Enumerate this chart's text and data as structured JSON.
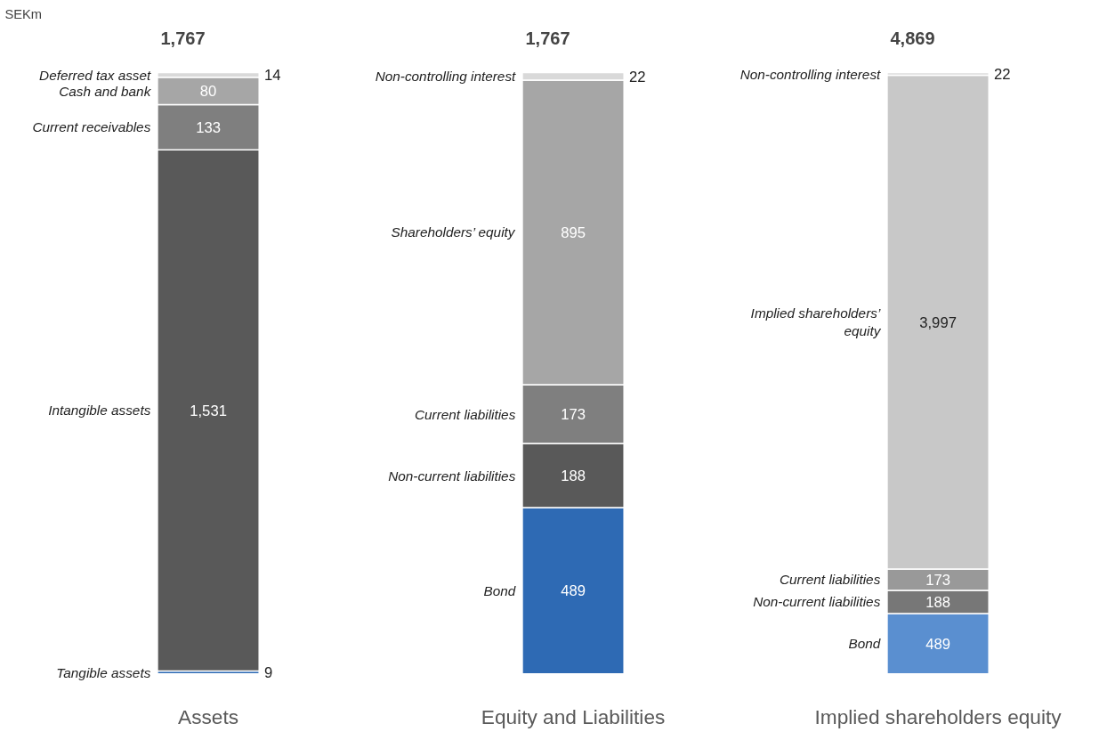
{
  "chart_data": [
    {
      "type": "bar",
      "stacked": true,
      "categories": [
        "Assets"
      ],
      "tick_labels": "x",
      "grid": false,
      "totals": [
        "1,767"
      ],
      "annotations": [
        "SEKm"
      ],
      "series": [
        {
          "name": "Tangible assets",
          "color": "#2e6ab4",
          "values": [
            9
          ],
          "value_labels": [
            "9"
          ]
        },
        {
          "name": "Intangible assets",
          "color": "#595959",
          "values": [
            1531
          ],
          "value_labels": [
            "1,531"
          ]
        },
        {
          "name": "Current receivables",
          "color": "#7f7f7f",
          "values": [
            133
          ],
          "value_labels": [
            "133"
          ]
        },
        {
          "name": "Cash and bank",
          "color": "#a6a6a6",
          "values": [
            80
          ],
          "value_labels": [
            "80"
          ]
        },
        {
          "name": "Deferred tax asset",
          "color": "#d9d9d9",
          "values": [
            14
          ],
          "value_labels": [
            "14"
          ]
        }
      ]
    },
    {
      "type": "bar",
      "stacked": true,
      "categories": [
        "Equity and Liabilities"
      ],
      "tick_labels": "x",
      "grid": false,
      "totals": [
        "1,767"
      ],
      "series": [
        {
          "name": "Bond",
          "color": "#2e6ab4",
          "values": [
            489
          ],
          "value_labels": [
            "489"
          ]
        },
        {
          "name": "Non-current liabilities",
          "color": "#595959",
          "values": [
            188
          ],
          "value_labels": [
            "188"
          ]
        },
        {
          "name": "Current liabilities",
          "color": "#7f7f7f",
          "values": [
            173
          ],
          "value_labels": [
            "173"
          ]
        },
        {
          "name": "Shareholders’ equity",
          "color": "#a6a6a6",
          "values": [
            895
          ],
          "value_labels": [
            "895"
          ]
        },
        {
          "name": "Non-controlling interest",
          "color": "#d9d9d9",
          "values": [
            22
          ],
          "value_labels": [
            "22"
          ]
        }
      ]
    },
    {
      "type": "bar",
      "stacked": true,
      "categories": [
        "Implied shareholders equity"
      ],
      "tick_labels": "x",
      "grid": false,
      "totals": [
        "4,869"
      ],
      "series": [
        {
          "name": "Bond",
          "color": "#5a8fd0",
          "values": [
            489
          ],
          "value_labels": [
            "489"
          ]
        },
        {
          "name": "Non-current liabilities",
          "color": "#777777",
          "values": [
            188
          ],
          "value_labels": [
            "188"
          ]
        },
        {
          "name": "Current liabilities",
          "color": "#999999",
          "values": [
            173
          ],
          "value_labels": [
            "173"
          ]
        },
        {
          "name": "Implied shareholders’ equity",
          "color": "#c8c8c8",
          "values": [
            3997
          ],
          "value_labels": [
            "3,997"
          ]
        },
        {
          "name": "Non-controlling interest",
          "color": "#dddddd",
          "values": [
            22
          ],
          "value_labels": [
            "22"
          ]
        }
      ]
    }
  ]
}
